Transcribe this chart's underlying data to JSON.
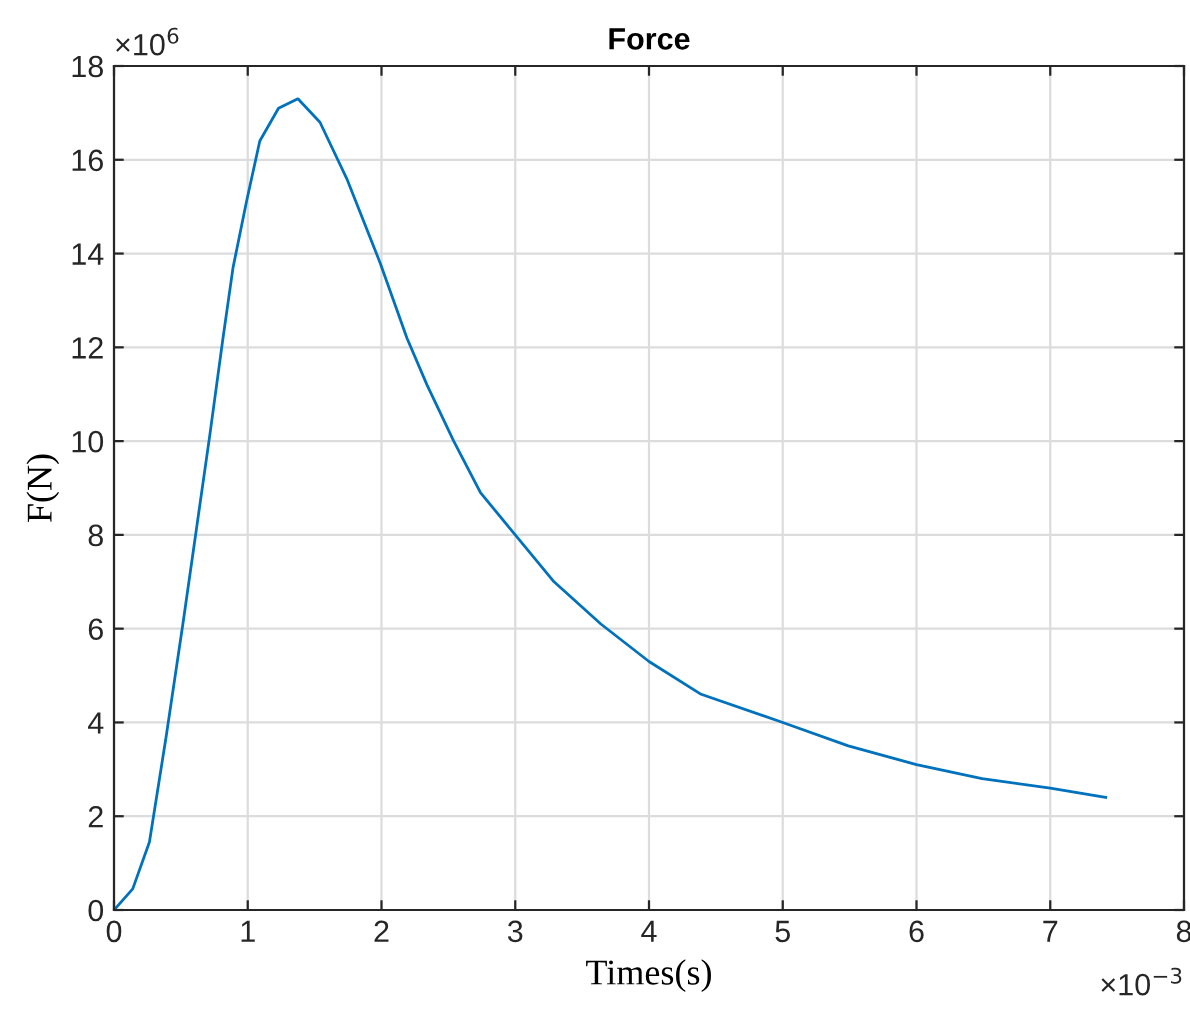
{
  "chart_data": {
    "type": "line",
    "title": "Force",
    "xlabel": "Times(s)",
    "ylabel": "F(N)",
    "annotations": [
      "×10$^{6}$",
      "×10$^{−3}$"
    ],
    "x": [
      0,
      0.14,
      0.265,
      0.39,
      0.515,
      0.615,
      0.715,
      0.815,
      0.89,
      0.99,
      1.09,
      1.23,
      1.375,
      1.54,
      1.74,
      1.99,
      2.19,
      2.34,
      2.54,
      2.74,
      3.0,
      3.29,
      3.64,
      4.0,
      4.39,
      5.0,
      5.49,
      6.0,
      6.49,
      7.0,
      7.415
    ],
    "series": [
      {
        "color": "#0072bd",
        "values": [
          0,
          0.45,
          1.45,
          3.7,
          6.1,
          8.1,
          10.1,
          12.2,
          13.7,
          15.1,
          16.4,
          17.1,
          17.3,
          16.8,
          15.6,
          13.8,
          12.2,
          11.2,
          10.0,
          8.9,
          8.0,
          7.0,
          6.1,
          5.3,
          4.6,
          4.0,
          3.5,
          3.1,
          2.8,
          2.6,
          2.4
        ]
      }
    ],
    "xlim": [
      0,
      8
    ],
    "ylim": [
      0,
      18
    ],
    "xticks": [
      0,
      1,
      2,
      3,
      4,
      5,
      6,
      7,
      8
    ],
    "yticks": [
      0,
      2,
      4,
      6,
      8,
      10,
      12,
      14,
      16,
      18
    ],
    "grid": true,
    "legend": false,
    "marker": "none",
    "line_style": "solid"
  }
}
